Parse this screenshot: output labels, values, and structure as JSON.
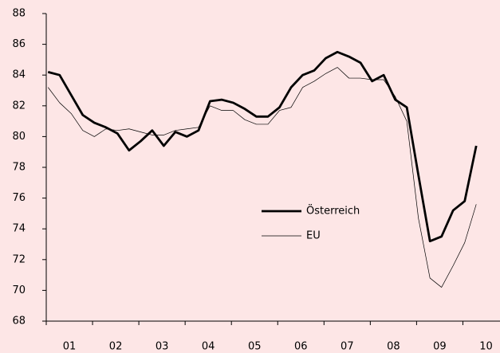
{
  "chart_data": {
    "type": "line",
    "x_labels": [
      "01",
      "02",
      "03",
      "04",
      "05",
      "06",
      "07",
      "08",
      "09",
      "10"
    ],
    "points_per_label": 4,
    "series": [
      {
        "name": "Österreich",
        "color": "#000000",
        "values": [
          84.2,
          84.0,
          82.7,
          81.4,
          80.9,
          80.6,
          80.2,
          79.1,
          79.7,
          80.4,
          79.4,
          80.3,
          80.0,
          80.4,
          82.3,
          82.4,
          82.2,
          81.8,
          81.3,
          81.3,
          81.9,
          83.2,
          84.0,
          84.3,
          85.1,
          85.5,
          85.2,
          84.8,
          83.6,
          84.0,
          82.4,
          81.9,
          77.5,
          73.2,
          73.5,
          75.2,
          75.8,
          79.4
        ]
      },
      {
        "name": "EU",
        "color": "#000000",
        "values": [
          83.2,
          82.2,
          81.5,
          80.4,
          80.0,
          80.5,
          80.4,
          80.5,
          80.3,
          80.1,
          80.1,
          80.4,
          80.5,
          80.6,
          82.0,
          81.7,
          81.7,
          81.1,
          80.8,
          80.8,
          81.7,
          81.9,
          83.2,
          83.6,
          84.1,
          84.5,
          83.8,
          83.8,
          83.7,
          83.7,
          82.6,
          81.0,
          74.7,
          70.8,
          70.2,
          71.6,
          73.1,
          75.6
        ]
      }
    ],
    "ylim": [
      68,
      88
    ],
    "yticks": [
      68,
      70,
      72,
      74,
      76,
      78,
      80,
      82,
      84,
      86,
      88
    ]
  }
}
